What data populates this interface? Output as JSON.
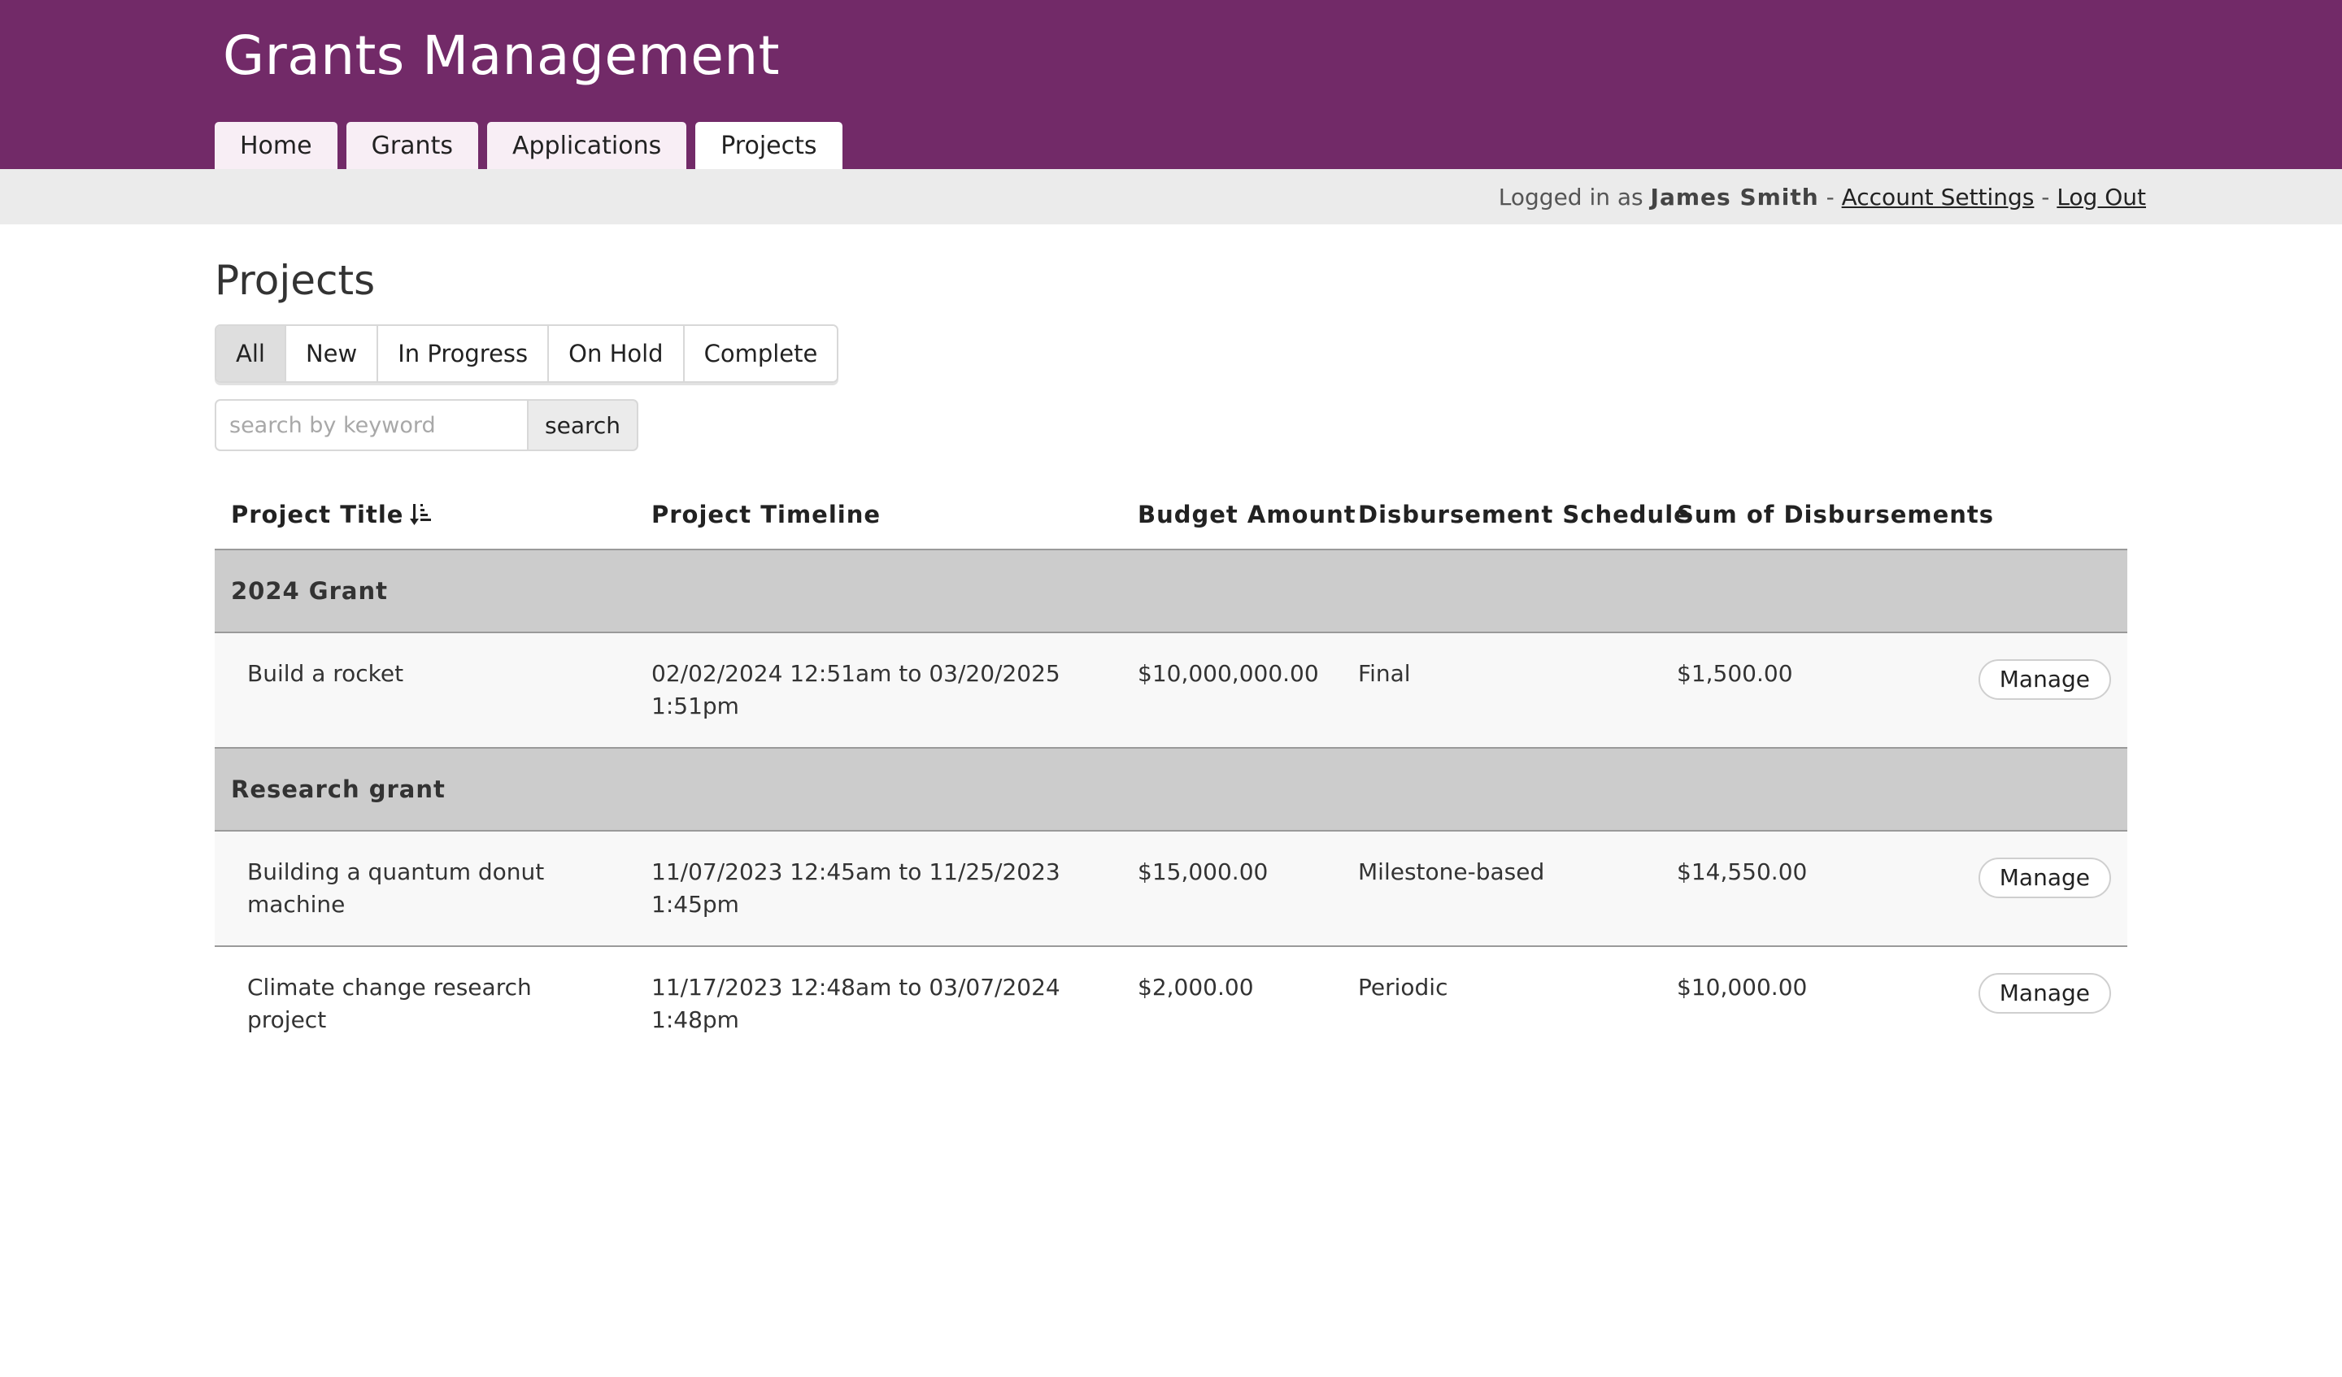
{
  "app": {
    "title": "Grants Management"
  },
  "nav": {
    "tabs": [
      {
        "label": "Home"
      },
      {
        "label": "Grants"
      },
      {
        "label": "Applications"
      },
      {
        "label": "Projects"
      }
    ],
    "active": "Projects"
  },
  "userbar": {
    "prefix": "Logged in as ",
    "user_name": "James Smith",
    "sep1": " - ",
    "account_settings": "Account Settings",
    "sep2": " - ",
    "logout": "Log Out"
  },
  "page": {
    "title": "Projects"
  },
  "filters": {
    "items": [
      {
        "label": "All"
      },
      {
        "label": "New"
      },
      {
        "label": "In Progress"
      },
      {
        "label": "On Hold"
      },
      {
        "label": "Complete"
      }
    ],
    "active": "All"
  },
  "search": {
    "placeholder": "search by keyword",
    "value": "",
    "button_label": "search"
  },
  "table": {
    "columns": [
      {
        "label": "Project Title",
        "sorted": "ascending"
      },
      {
        "label": "Project Timeline"
      },
      {
        "label": "Budget Amount"
      },
      {
        "label": "Disbursement Schedule"
      },
      {
        "label": "Sum of Disbursements"
      }
    ],
    "groups": [
      {
        "name": "2024 Grant",
        "rows": [
          {
            "title": "Build a rocket",
            "timeline": "02/02/2024 12:51am to 03/20/2025 1:51pm",
            "budget": "$10,000,000.00",
            "schedule": "Final",
            "sum": "$1,500.00",
            "action": "Manage"
          }
        ]
      },
      {
        "name": "Research grant",
        "rows": [
          {
            "title": "Building a quantum donut machine",
            "timeline": "11/07/2023 12:45am to 11/25/2023 1:45pm",
            "budget": "$15,000.00",
            "schedule": "Milestone-based",
            "sum": "$14,550.00",
            "action": "Manage"
          },
          {
            "title": "Climate change research project",
            "timeline": "11/17/2023 12:48am to 03/07/2024 1:48pm",
            "budget": "$2,000.00",
            "schedule": "Periodic",
            "sum": "$10,000.00",
            "action": "Manage"
          }
        ]
      }
    ]
  },
  "colors": {
    "header_bg": "#722a68",
    "userbar_bg": "#ebebeb",
    "group_bg": "#cccccc"
  },
  "icons": {
    "sort": "sort-ascending-icon"
  }
}
